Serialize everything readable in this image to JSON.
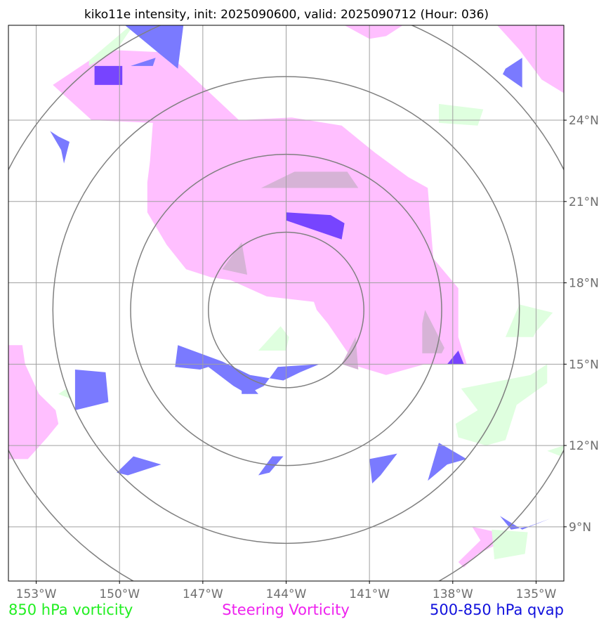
{
  "chart_data": {
    "type": "map",
    "title": "kiko11e intensity, init: 2025090600, valid: 2025090712 (Hour: 036)",
    "storm_center": {
      "lon": -144.0,
      "lat": 17.0
    },
    "lon_range": [
      -154.0,
      -134.0
    ],
    "lat_range": [
      7.0,
      27.5
    ],
    "x_ticks": [
      {
        "value": -153,
        "label": "153°W"
      },
      {
        "value": -150,
        "label": "150°W"
      },
      {
        "value": -147,
        "label": "147°W"
      },
      {
        "value": -144,
        "label": "144°W"
      },
      {
        "value": -141,
        "label": "141°W"
      },
      {
        "value": -138,
        "label": "138°W"
      },
      {
        "value": -135,
        "label": "135°W"
      }
    ],
    "y_ticks": [
      {
        "value": 24,
        "label": "24°N"
      },
      {
        "value": 21,
        "label": "21°N"
      },
      {
        "value": 18,
        "label": "18°N"
      },
      {
        "value": 15,
        "label": "15°N"
      },
      {
        "value": 12,
        "label": "12°N"
      },
      {
        "value": 9,
        "label": "9°N"
      }
    ],
    "range_rings_deg": [
      2.8,
      5.6,
      8.4,
      11.2
    ],
    "legend": [
      {
        "label": "850 hPa vorticity",
        "color": "#22ee22"
      },
      {
        "label": "Steering Vorticity",
        "color": "#ee22ee"
      },
      {
        "label": "500-850 hPa qvap",
        "color": "#1111dd"
      }
    ],
    "layers": {
      "steering_vorticity": {
        "color": "#ffbfff",
        "polygons": [
          [
            [
              -152.4,
              25.3
            ],
            [
              -150.5,
              26.6
            ],
            [
              -148.3,
              26.5
            ],
            [
              -145.7,
              24.0
            ],
            [
              -143.8,
              24.1
            ],
            [
              -142.0,
              23.8
            ],
            [
              -140.8,
              22.8
            ],
            [
              -139.6,
              21.9
            ],
            [
              -138.9,
              21.5
            ],
            [
              -138.7,
              18.9
            ],
            [
              -137.8,
              17.8
            ],
            [
              -137.8,
              16.0
            ],
            [
              -137.5,
              15.0
            ],
            [
              -139.0,
              15.0
            ],
            [
              -140.4,
              14.6
            ],
            [
              -141.7,
              15.0
            ],
            [
              -141.7,
              15.3
            ],
            [
              -142.5,
              16.5
            ],
            [
              -142.9,
              17.0
            ],
            [
              -143.0,
              17.3
            ],
            [
              -144.7,
              17.5
            ],
            [
              -146.0,
              18.1
            ],
            [
              -146.7,
              18.2
            ],
            [
              -147.6,
              18.5
            ],
            [
              -148.3,
              19.4
            ],
            [
              -149.0,
              20.6
            ],
            [
              -149.0,
              21.7
            ],
            [
              -148.9,
              22.5
            ],
            [
              -148.8,
              23.9
            ],
            [
              -151.0,
              24.0
            ]
          ],
          [
            [
              -154.0,
              15.7
            ],
            [
              -153.5,
              15.7
            ],
            [
              -153.4,
              15.0
            ],
            [
              -152.9,
              13.9
            ],
            [
              -152.3,
              13.3
            ],
            [
              -152.2,
              12.8
            ],
            [
              -152.6,
              12.3
            ],
            [
              -153.3,
              11.5
            ],
            [
              -154.0,
              11.5
            ]
          ],
          [
            [
              -141.9,
              27.5
            ],
            [
              -139.8,
              27.5
            ],
            [
              -140.4,
              27.1
            ],
            [
              -141.0,
              27.0
            ]
          ],
          [
            [
              -136.4,
              27.5
            ],
            [
              -134.0,
              27.5
            ],
            [
              -134.0,
              25.0
            ],
            [
              -134.8,
              25.5
            ],
            [
              -135.6,
              26.6
            ]
          ],
          [
            [
              -137.0,
              8.5
            ],
            [
              -137.8,
              7.7
            ],
            [
              -137.6,
              7.5
            ],
            [
              -137.1,
              8.0
            ],
            [
              -136.5,
              8.3
            ],
            [
              -136.4,
              8.8
            ],
            [
              -137.3,
              9.0
            ]
          ]
        ]
      },
      "steering_overlap": {
        "color": "#d6b3d6",
        "polygons": [
          [
            [
              -144.9,
              21.5
            ],
            [
              -143.7,
              22.1
            ],
            [
              -141.8,
              22.1
            ],
            [
              -141.4,
              21.5
            ]
          ],
          [
            [
              -146.3,
              18.5
            ],
            [
              -145.6,
              19.5
            ],
            [
              -145.4,
              18.3
            ]
          ],
          [
            [
              -139.0,
              17.0
            ],
            [
              -138.3,
              15.6
            ],
            [
              -138.4,
              15.4
            ],
            [
              -139.1,
              15.4
            ],
            [
              -139.1,
              16.5
            ]
          ],
          [
            [
              -142.0,
              15.0
            ],
            [
              -141.5,
              16.0
            ],
            [
              -141.4,
              14.8
            ]
          ]
        ]
      },
      "vorticity_850": {
        "color": "#dfffdf",
        "polygons": [
          [
            [
              -151.1,
              26.2
            ],
            [
              -149.6,
              27.5
            ],
            [
              -149.5,
              27.5
            ],
            [
              -150.1,
              26.6
            ],
            [
              -151.1,
              26.0
            ]
          ],
          [
            [
              -145.0,
              15.5
            ],
            [
              -144.2,
              16.4
            ],
            [
              -143.9,
              16.0
            ],
            [
              -144.0,
              15.5
            ]
          ],
          [
            [
              -138.5,
              24.6
            ],
            [
              -136.9,
              24.4
            ],
            [
              -137.1,
              23.8
            ],
            [
              -138.5,
              23.9
            ]
          ],
          [
            [
              -135.6,
              17.2
            ],
            [
              -134.4,
              16.9
            ],
            [
              -135.0,
              16.2
            ],
            [
              -135.1,
              16.0
            ],
            [
              -136.1,
              16.0
            ]
          ],
          [
            [
              -137.7,
              14.1
            ],
            [
              -135.2,
              14.6
            ],
            [
              -134.6,
              15.0
            ],
            [
              -134.6,
              14.3
            ],
            [
              -135.7,
              13.5
            ],
            [
              -136.1,
              12.2
            ],
            [
              -136.8,
              12.0
            ],
            [
              -137.8,
              12.3
            ],
            [
              -137.9,
              12.8
            ],
            [
              -137.1,
              13.3
            ]
          ],
          [
            [
              -136.6,
              8.9
            ],
            [
              -135.3,
              8.8
            ],
            [
              -135.4,
              8.0
            ],
            [
              -136.5,
              7.8
            ]
          ],
          [
            [
              -134.6,
              11.8
            ],
            [
              -134.0,
              12.0
            ],
            [
              -134.1,
              11.6
            ]
          ],
          [
            [
              -152.2,
              13.9
            ],
            [
              -151.9,
              14.1
            ],
            [
              -151.7,
              13.7
            ]
          ]
        ]
      },
      "qvap_500_850": {
        "color": "#7a7aff",
        "polygons": [
          [
            [
              -149.8,
              27.5
            ],
            [
              -148.5,
              26.4
            ],
            [
              -147.9,
              25.9
            ],
            [
              -147.7,
              27.5
            ]
          ],
          [
            [
              -149.6,
              26.0
            ],
            [
              -148.7,
              26.3
            ],
            [
              -148.8,
              26.0
            ]
          ],
          [
            [
              -152.1,
              22.9
            ],
            [
              -152.5,
              23.6
            ],
            [
              -152.2,
              23.4
            ],
            [
              -151.8,
              23.2
            ],
            [
              -152.0,
              22.4
            ]
          ],
          [
            [
              -147.9,
              15.7
            ],
            [
              -148.0,
              14.9
            ],
            [
              -147.1,
              14.8
            ],
            [
              -146.8,
              14.9
            ],
            [
              -145.9,
              14.2
            ],
            [
              -145.4,
              13.9
            ],
            [
              -144.8,
              14.2
            ],
            [
              -144.3,
              14.9
            ],
            [
              -142.8,
              15.0
            ],
            [
              -143.5,
              14.7
            ],
            [
              -144.1,
              14.4
            ],
            [
              -145.3,
              14.6
            ],
            [
              -146.3,
              15.1
            ]
          ],
          [
            [
              -145.6,
              14.6
            ],
            [
              -145.0,
              13.9
            ],
            [
              -145.6,
              13.9
            ]
          ],
          [
            [
              -151.6,
              14.8
            ],
            [
              -150.5,
              14.7
            ],
            [
              -150.4,
              13.6
            ],
            [
              -151.6,
              13.3
            ]
          ],
          [
            [
              -149.5,
              11.6
            ],
            [
              -148.5,
              11.3
            ],
            [
              -149.7,
              10.9
            ],
            [
              -150.1,
              11.0
            ]
          ],
          [
            [
              -144.5,
              11.6
            ],
            [
              -144.1,
              11.6
            ],
            [
              -144.6,
              11.0
            ],
            [
              -145.0,
              10.9
            ]
          ],
          [
            [
              -141.0,
              11.5
            ],
            [
              -140.0,
              11.7
            ],
            [
              -140.6,
              10.9
            ],
            [
              -140.9,
              10.6
            ]
          ],
          [
            [
              -138.5,
              12.1
            ],
            [
              -137.5,
              11.5
            ],
            [
              -138.2,
              11.3
            ],
            [
              -138.9,
              10.7
            ]
          ],
          [
            [
              -136.1,
              25.9
            ],
            [
              -135.5,
              26.3
            ],
            [
              -135.5,
              25.2
            ],
            [
              -136.2,
              25.7
            ]
          ],
          [
            [
              -136.3,
              9.4
            ],
            [
              -135.5,
              8.9
            ],
            [
              -134.5,
              9.3
            ],
            [
              -135.3,
              9.0
            ],
            [
              -135.9,
              8.9
            ]
          ]
        ]
      },
      "qvap_dark": {
        "color": "#7744ff",
        "polygons": [
          [
            [
              -150.9,
              26.0
            ],
            [
              -149.9,
              26.0
            ],
            [
              -149.9,
              25.3
            ],
            [
              -150.9,
              25.3
            ]
          ],
          [
            [
              -144.0,
              20.6
            ],
            [
              -142.4,
              20.5
            ],
            [
              -141.9,
              20.2
            ],
            [
              -142.0,
              19.6
            ],
            [
              -144.0,
              20.3
            ]
          ],
          [
            [
              -137.8,
              15.5
            ],
            [
              -137.6,
              15.0
            ],
            [
              -138.2,
              15.0
            ]
          ]
        ]
      }
    }
  }
}
